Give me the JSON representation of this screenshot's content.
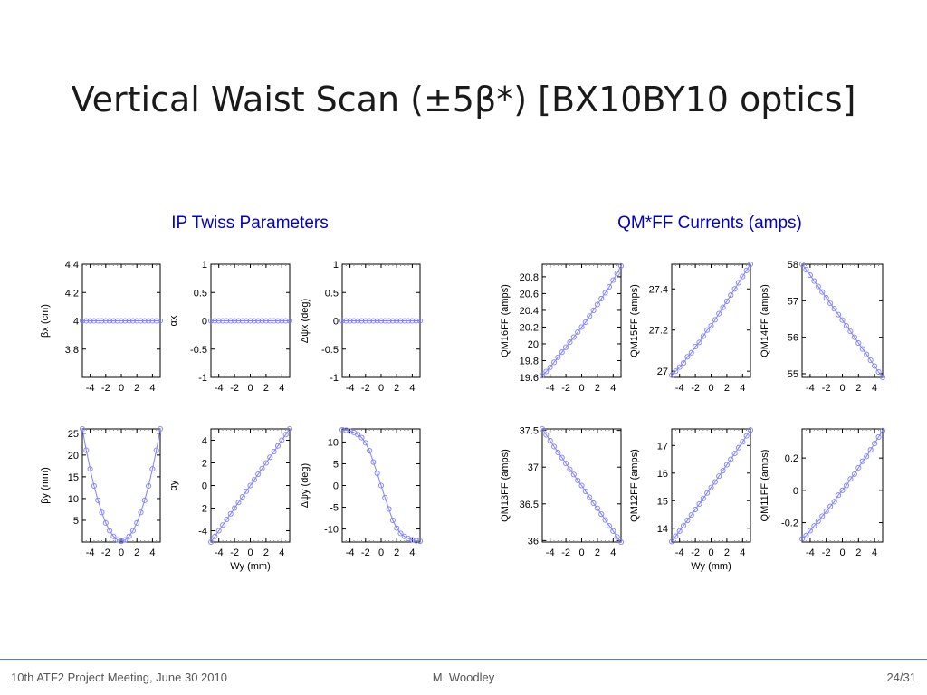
{
  "slide": {
    "title": "Vertical Waist Scan (±5β*) [BX10BY10 optics]",
    "section_left": "IP Twiss Parameters",
    "section_right": "QM*FF Currents (amps)",
    "footer_left": "10th ATF2 Project Meeting, June 30 2010",
    "footer_center": "M. Woodley",
    "footer_right": "24/31"
  },
  "colors": {
    "series": "#8080ff",
    "title": "#1a1a1a",
    "section": "#0000cc",
    "footer_rule": "#4f81bd"
  },
  "chart_data": [
    {
      "id": "betax",
      "type": "line",
      "ylabel": "βx (cm)",
      "xlabel": "",
      "xlim": [
        -5,
        5
      ],
      "ylim": [
        3.6,
        4.4
      ],
      "xticks": [
        -4,
        -2,
        0,
        2,
        4
      ],
      "yticks": [
        3.8,
        4,
        4.2,
        4.4
      ],
      "x": [
        -5,
        -4.5,
        -4,
        -3.5,
        -3,
        -2.5,
        -2,
        -1.5,
        -1,
        -0.5,
        0,
        0.5,
        1,
        1.5,
        2,
        2.5,
        3,
        3.5,
        4,
        4.5,
        5
      ],
      "y": [
        4,
        4,
        4,
        4,
        4,
        4,
        4,
        4,
        4,
        4,
        4,
        4,
        4,
        4,
        4,
        4,
        4,
        4,
        4,
        4,
        4
      ]
    },
    {
      "id": "alphax",
      "type": "line",
      "ylabel": "αx",
      "xlabel": "",
      "xlim": [
        -5,
        5
      ],
      "ylim": [
        -1,
        1
      ],
      "xticks": [
        -4,
        -2,
        0,
        2,
        4
      ],
      "yticks": [
        -1,
        -0.5,
        0,
        0.5,
        1
      ],
      "x": [
        -5,
        -4.5,
        -4,
        -3.5,
        -3,
        -2.5,
        -2,
        -1.5,
        -1,
        -0.5,
        0,
        0.5,
        1,
        1.5,
        2,
        2.5,
        3,
        3.5,
        4,
        4.5,
        5
      ],
      "y": [
        0,
        0,
        0,
        0,
        0,
        0,
        0,
        0,
        0,
        0,
        0,
        0,
        0,
        0,
        0,
        0,
        0,
        0,
        0,
        0,
        0
      ]
    },
    {
      "id": "dpsix",
      "type": "line",
      "ylabel": "Δψx (deg)",
      "xlabel": "",
      "xlim": [
        -5,
        5
      ],
      "ylim": [
        -1,
        1
      ],
      "xticks": [
        -4,
        -2,
        0,
        2,
        4
      ],
      "yticks": [
        -1,
        -0.5,
        0,
        0.5,
        1
      ],
      "x": [
        -5,
        -4.5,
        -4,
        -3.5,
        -3,
        -2.5,
        -2,
        -1.5,
        -1,
        -0.5,
        0,
        0.5,
        1,
        1.5,
        2,
        2.5,
        3,
        3.5,
        4,
        4.5,
        5
      ],
      "y": [
        0,
        0,
        0,
        0,
        0,
        0,
        0,
        0,
        0,
        0,
        0,
        0,
        0,
        0,
        0,
        0,
        0,
        0,
        0,
        0,
        0
      ]
    },
    {
      "id": "betay",
      "type": "line",
      "ylabel": "βy (mm)",
      "xlabel": "",
      "xlim": [
        -5,
        5
      ],
      "ylim": [
        0,
        26
      ],
      "xticks": [
        -4,
        -2,
        0,
        2,
        4
      ],
      "yticks": [
        5,
        10,
        15,
        20,
        25
      ],
      "x": [
        -5,
        -4.5,
        -4,
        -3.5,
        -3,
        -2.5,
        -2,
        -1.5,
        -1,
        -0.5,
        0,
        0.5,
        1,
        1.5,
        2,
        2.5,
        3,
        3.5,
        4,
        4.5,
        5
      ],
      "y": [
        26,
        21.1,
        16.8,
        12.9,
        9.6,
        6.8,
        4.4,
        2.6,
        1.3,
        0.5,
        0.2,
        0.5,
        1.3,
        2.6,
        4.4,
        6.8,
        9.6,
        12.9,
        16.8,
        21.1,
        26
      ]
    },
    {
      "id": "alphay",
      "type": "line",
      "ylabel": "αy",
      "xlabel": "Wy (mm)",
      "xlim": [
        -5,
        5
      ],
      "ylim": [
        -5,
        5
      ],
      "xticks": [
        -4,
        -2,
        0,
        2,
        4
      ],
      "yticks": [
        -4,
        -2,
        0,
        2,
        4
      ],
      "x": [
        -5,
        -4.5,
        -4,
        -3.5,
        -3,
        -2.5,
        -2,
        -1.5,
        -1,
        -0.5,
        0,
        0.5,
        1,
        1.5,
        2,
        2.5,
        3,
        3.5,
        4,
        4.5,
        5
      ],
      "y": [
        -5,
        -4.5,
        -4,
        -3.5,
        -3,
        -2.5,
        -2,
        -1.5,
        -1,
        -0.5,
        0,
        0.5,
        1,
        1.5,
        2,
        2.5,
        3,
        3.5,
        4,
        4.5,
        5
      ]
    },
    {
      "id": "dpsiy",
      "type": "line",
      "ylabel": "Δψy (deg)",
      "xlabel": "",
      "xlim": [
        -5,
        5
      ],
      "ylim": [
        -13,
        13
      ],
      "xticks": [
        -4,
        -2,
        0,
        2,
        4
      ],
      "yticks": [
        -10,
        -5,
        0,
        5,
        10
      ],
      "x": [
        -5,
        -4.5,
        -4,
        -3.5,
        -3,
        -2.5,
        -2,
        -1.5,
        -1,
        -0.5,
        0,
        0.5,
        1,
        1.5,
        2,
        2.5,
        3,
        3.5,
        4,
        4.5,
        5
      ],
      "y": [
        12.8,
        12.7,
        12.5,
        12.2,
        11.7,
        11,
        9.8,
        8,
        5.4,
        2.8,
        0,
        -2.8,
        -5.4,
        -8,
        -9.8,
        -11,
        -11.7,
        -12.2,
        -12.5,
        -12.7,
        -12.8
      ]
    },
    {
      "id": "qm16",
      "type": "line",
      "ylabel": "QM16FF (amps)",
      "xlabel": "",
      "xlim": [
        -5,
        5
      ],
      "ylim": [
        19.6,
        20.95
      ],
      "xticks": [
        -4,
        -2,
        0,
        2,
        4
      ],
      "yticks": [
        19.6,
        19.8,
        20,
        20.2,
        20.4,
        20.6,
        20.8
      ],
      "x": [
        -5,
        -4.5,
        -4,
        -3.5,
        -3,
        -2.5,
        -2,
        -1.5,
        -1,
        -0.5,
        0,
        0.5,
        1,
        1.5,
        2,
        2.5,
        3,
        3.5,
        4,
        4.5,
        5
      ],
      "y": [
        19.62,
        19.67,
        19.72,
        19.78,
        19.84,
        19.9,
        19.96,
        20.02,
        20.08,
        20.14,
        20.2,
        20.26,
        20.33,
        20.4,
        20.47,
        20.54,
        20.61,
        20.68,
        20.76,
        20.84,
        20.93
      ]
    },
    {
      "id": "qm15",
      "type": "line",
      "ylabel": "QM15FF (amps)",
      "xlabel": "",
      "xlim": [
        -5,
        5
      ],
      "ylim": [
        26.97,
        27.52
      ],
      "xticks": [
        -4,
        -2,
        0,
        2,
        4
      ],
      "yticks": [
        27,
        27.2,
        27.4
      ],
      "x": [
        -5,
        -4.5,
        -4,
        -3.5,
        -3,
        -2.5,
        -2,
        -1.5,
        -1,
        -0.5,
        0,
        0.5,
        1,
        1.5,
        2,
        2.5,
        3,
        3.5,
        4,
        4.5,
        5
      ],
      "y": [
        26.98,
        27,
        27.02,
        27.04,
        27.07,
        27.09,
        27.12,
        27.14,
        27.17,
        27.2,
        27.22,
        27.25,
        27.28,
        27.31,
        27.34,
        27.37,
        27.4,
        27.43,
        27.46,
        27.49,
        27.52
      ]
    },
    {
      "id": "qm14",
      "type": "line",
      "ylabel": "QM14FF (amps)",
      "xlabel": "",
      "xlim": [
        -5,
        5
      ],
      "ylim": [
        54.9,
        58
      ],
      "xticks": [
        -4,
        -2,
        0,
        2,
        4
      ],
      "yticks": [
        55,
        56,
        57,
        58
      ],
      "x": [
        -5,
        -4.5,
        -4,
        -3.5,
        -3,
        -2.5,
        -2,
        -1.5,
        -1,
        -0.5,
        0,
        0.5,
        1,
        1.5,
        2,
        2.5,
        3,
        3.5,
        4,
        4.5,
        5
      ],
      "y": [
        58,
        57.85,
        57.7,
        57.54,
        57.39,
        57.24,
        57.08,
        56.93,
        56.78,
        56.62,
        56.47,
        56.31,
        56.16,
        56,
        55.84,
        55.68,
        55.53,
        55.37,
        55.21,
        55.05,
        54.9
      ]
    },
    {
      "id": "qm13",
      "type": "line",
      "ylabel": "QM13FF (amps)",
      "xlabel": "",
      "xlim": [
        -5,
        5
      ],
      "ylim": [
        35.98,
        37.52
      ],
      "xticks": [
        -4,
        -2,
        0,
        2,
        4
      ],
      "yticks": [
        36,
        36.5,
        37,
        37.5
      ],
      "x": [
        -5,
        -4.5,
        -4,
        -3.5,
        -3,
        -2.5,
        -2,
        -1.5,
        -1,
        -0.5,
        0,
        0.5,
        1,
        1.5,
        2,
        2.5,
        3,
        3.5,
        4,
        4.5,
        5
      ],
      "y": [
        37.52,
        37.44,
        37.36,
        37.28,
        37.2,
        37.13,
        37.05,
        36.97,
        36.9,
        36.82,
        36.75,
        36.67,
        36.59,
        36.51,
        36.44,
        36.36,
        36.28,
        36.2,
        36.13,
        36.05,
        35.98
      ]
    },
    {
      "id": "qm12",
      "type": "line",
      "ylabel": "QM12FF (amps)",
      "xlabel": "Wy (mm)",
      "xlim": [
        -5,
        5
      ],
      "ylim": [
        13.5,
        17.6
      ],
      "xticks": [
        -4,
        -2,
        0,
        2,
        4
      ],
      "yticks": [
        14,
        15,
        16,
        17
      ],
      "x": [
        -5,
        -4.5,
        -4,
        -3.5,
        -3,
        -2.5,
        -2,
        -1.5,
        -1,
        -0.5,
        0,
        0.5,
        1,
        1.5,
        2,
        2.5,
        3,
        3.5,
        4,
        4.5,
        5
      ],
      "y": [
        13.52,
        13.71,
        13.9,
        14.09,
        14.29,
        14.48,
        14.68,
        14.88,
        15.08,
        15.28,
        15.48,
        15.68,
        15.89,
        16.09,
        16.3,
        16.5,
        16.71,
        16.92,
        17.13,
        17.35,
        17.56
      ]
    },
    {
      "id": "qm11",
      "type": "line",
      "ylabel": "QM11FF (amps)",
      "xlabel": "",
      "xlim": [
        -5,
        5
      ],
      "ylim": [
        -0.32,
        0.38
      ],
      "xticks": [
        -4,
        -2,
        0,
        2,
        4
      ],
      "yticks": [
        -0.2,
        0,
        0.2
      ],
      "x": [
        -5,
        -4.5,
        -4,
        -3.5,
        -3,
        -2.5,
        -2,
        -1.5,
        -1,
        -0.5,
        0,
        0.5,
        1,
        1.5,
        2,
        2.5,
        3,
        3.5,
        4,
        4.5,
        5
      ],
      "y": [
        -0.3,
        -0.28,
        -0.25,
        -0.22,
        -0.19,
        -0.16,
        -0.13,
        -0.1,
        -0.07,
        -0.03,
        0,
        0.03,
        0.07,
        0.1,
        0.14,
        0.18,
        0.21,
        0.25,
        0.29,
        0.33,
        0.37
      ]
    }
  ]
}
